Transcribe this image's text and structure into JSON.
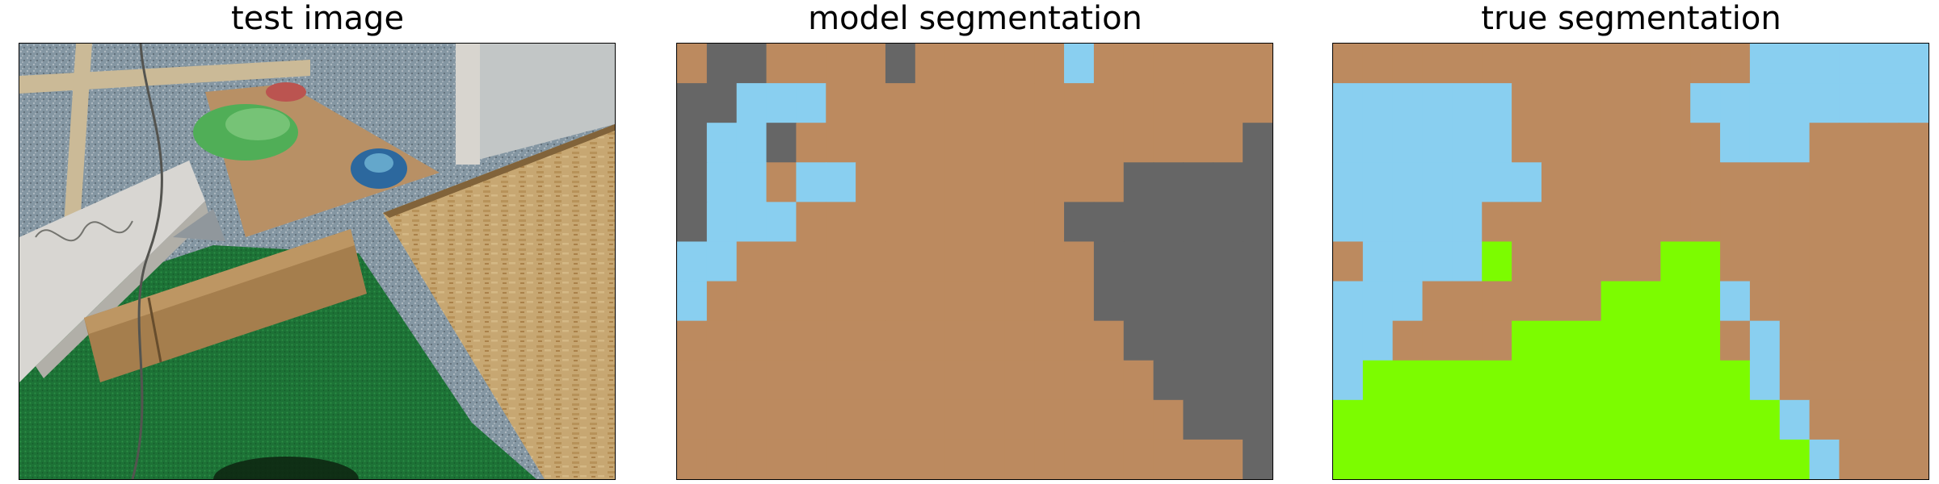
{
  "panels": [
    {
      "title": "test image"
    },
    {
      "title": "model segmentation"
    },
    {
      "title": "true segmentation"
    }
  ],
  "colors": {
    "tan": "#bc8a5f",
    "gray": "#666666",
    "sky": "#89cff0",
    "lime": "#7cfc00"
  },
  "model_segmentation": {
    "rows": 11,
    "cols": 20,
    "grid": [
      "TGGTTTTGTTTTTSTTTTTT",
      "GGSSSTTTTTTTTTTTTTTT",
      "GSSGTTTTTTTTTTTTTTTG",
      "GSSTSSTTTTTTTTTGGGGG",
      "GSSSTTTTTTTTTGGGGGGG",
      "SSTTTTTTTTTTTTGGGGGG",
      "STTTTTTTTTTTTTGGGGGG",
      "TTTTTTTTTTTTTTTGGGGG",
      "TTTTTTTTTTTTTTTTGGGG",
      "TTTTTTTTTTTTTTTTTGGG",
      "TTTTTTTTTTTTTTTTTTTG"
    ]
  },
  "true_segmentation": {
    "rows": 11,
    "cols": 20,
    "grid": [
      "TTTTTTTTTTTTTTSSSSSS",
      "SSSSSSTTTTTTSSSSSSSS",
      "SSSSSSTTTTTTTSSSTTTT",
      "SSSSSSSTTTTTTTTTTTTT",
      "SSSSSTTTTTTTTTTTTTTT",
      "TSSSSLTTTTTLLTTTTTTT",
      "SSSTTTTTTLLLLSTTTTTT",
      "SSTTTTLLLLLLLTSTTTTT",
      "SLLLLLLLLLLLLLSTTTTT",
      "LLLLLLLLLLLLLLLSTTTT",
      "LLLLLLLLLLLLLLLLSTTT"
    ]
  }
}
